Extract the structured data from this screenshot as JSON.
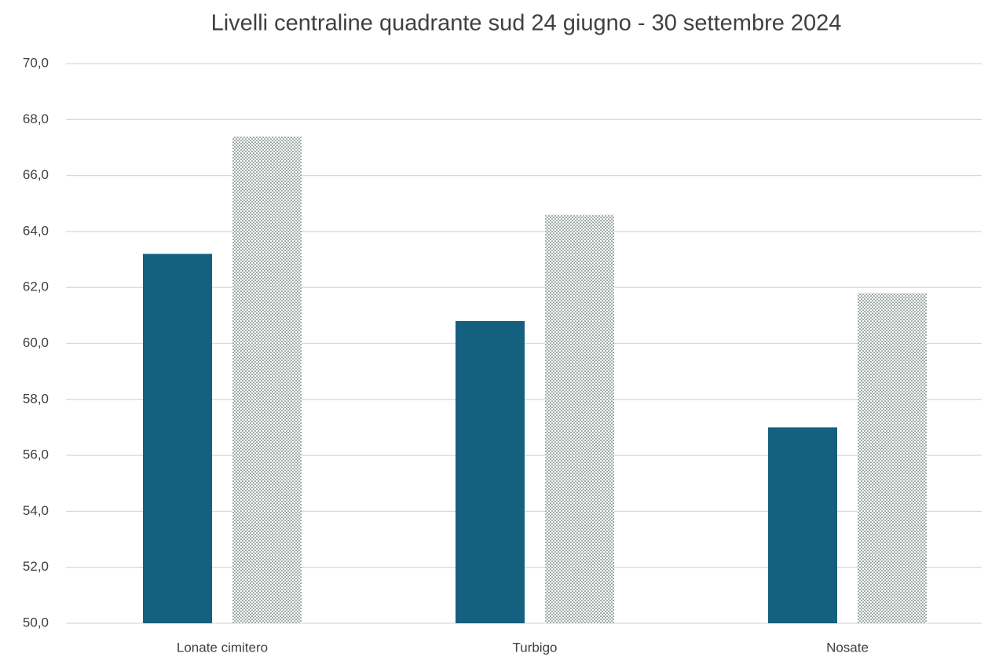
{
  "chart_data": {
    "type": "bar",
    "title": "Livelli centraline quadrante sud 24 giugno - 30 settembre 2024",
    "categories": [
      "Lonate cimitero",
      "Turbigo",
      "Nosate"
    ],
    "series": [
      {
        "color": "#16607f",
        "pattern": "solid",
        "values": [
          63.2,
          60.8,
          57.0
        ]
      },
      {
        "color": "#2d4a40",
        "pattern": "dots",
        "values": [
          67.4,
          64.6,
          61.8
        ]
      }
    ],
    "ylim": [
      50,
      70
    ],
    "yticks": [
      {
        "value": 50,
        "label": "50,0"
      },
      {
        "value": 52,
        "label": "52,0"
      },
      {
        "value": 54,
        "label": "54,0"
      },
      {
        "value": 56,
        "label": "56,0"
      },
      {
        "value": 58,
        "label": "58,0"
      },
      {
        "value": 60,
        "label": "60,0"
      },
      {
        "value": 62,
        "label": "62,0"
      },
      {
        "value": 64,
        "label": "64,0"
      },
      {
        "value": 66,
        "label": "66,0"
      },
      {
        "value": 68,
        "label": "68,0"
      },
      {
        "value": 70,
        "label": "70,0"
      }
    ],
    "grid": true
  }
}
